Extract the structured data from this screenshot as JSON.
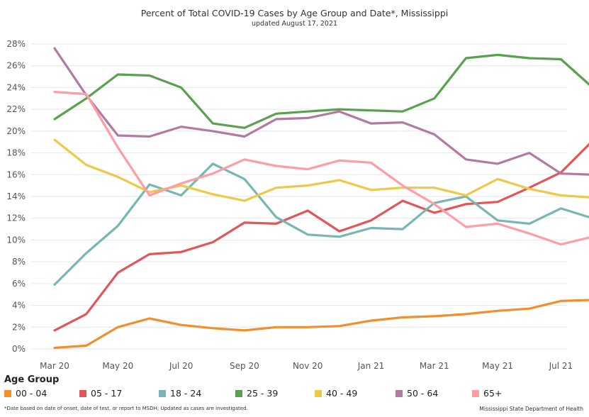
{
  "chart_data": {
    "type": "line",
    "title": "Percent of Total COVID-19 Cases by Age Group and Date*, Mississippi",
    "subtitle": "updated August 17, 2021",
    "x": [
      "Mar 20",
      "Apr 20",
      "May 20",
      "Jun 20",
      "Jul 20",
      "Aug 20",
      "Sep 20",
      "Oct 20",
      "Nov 20",
      "Dec 20",
      "Jan 21",
      "Feb 21",
      "Mar 21",
      "Apr 21",
      "May 21",
      "Jun 21",
      "Jul 21",
      "Aug 21"
    ],
    "x_tick_labels": [
      "Mar 20",
      "May 20",
      "Jul 20",
      "Sep 20",
      "Nov 20",
      "Jan 21",
      "Mar 21",
      "May 21",
      "Jul 21"
    ],
    "y_tick_labels": [
      "0%",
      "2%",
      "4%",
      "6%",
      "8%",
      "10%",
      "12%",
      "14%",
      "16%",
      "18%",
      "20%",
      "22%",
      "24%",
      "26%",
      "28%"
    ],
    "ylim": [
      0,
      28
    ],
    "grid": "horizontal",
    "legend_title": "Age Group",
    "legend_position": "bottom",
    "series": [
      {
        "name": "00 - 04",
        "color": "#f28e2b",
        "values": [
          0.1,
          0.3,
          2.0,
          2.8,
          2.2,
          1.9,
          1.7,
          2.0,
          2.0,
          2.1,
          2.6,
          2.9,
          3.0,
          3.2,
          3.5,
          3.7,
          4.4,
          4.5
        ]
      },
      {
        "name": "05 - 17",
        "color": "#e15759",
        "values": [
          1.7,
          3.2,
          7.0,
          8.7,
          8.9,
          9.8,
          11.6,
          11.5,
          12.7,
          10.8,
          11.8,
          13.6,
          12.5,
          13.3,
          13.5,
          14.8,
          16.2,
          19.1
        ]
      },
      {
        "name": "18 - 24",
        "color": "#76b7b2",
        "values": [
          5.9,
          8.8,
          11.3,
          15.1,
          14.1,
          17.0,
          15.6,
          12.1,
          10.5,
          10.3,
          11.1,
          11.0,
          13.4,
          14.0,
          11.8,
          11.5,
          12.9,
          12.0
        ]
      },
      {
        "name": "25 - 39",
        "color": "#59a14f",
        "values": [
          21.1,
          23.0,
          25.2,
          25.1,
          24.0,
          20.7,
          20.3,
          21.6,
          21.8,
          22.0,
          21.9,
          21.8,
          23.0,
          26.7,
          27.0,
          26.7,
          26.6,
          24.0
        ]
      },
      {
        "name": "40 - 49",
        "color": "#edc948",
        "values": [
          19.2,
          16.9,
          15.8,
          14.4,
          15.0,
          14.2,
          13.6,
          14.8,
          15.0,
          15.5,
          14.6,
          14.8,
          14.8,
          14.1,
          15.6,
          14.7,
          14.1,
          13.9
        ]
      },
      {
        "name": "50 - 64",
        "color": "#b07aa1",
        "values": [
          27.6,
          23.3,
          19.6,
          19.5,
          20.4,
          20.0,
          19.5,
          21.1,
          21.2,
          21.8,
          20.7,
          20.8,
          19.7,
          17.4,
          17.0,
          18.0,
          16.1,
          16.0
        ]
      },
      {
        "name": "65+",
        "color": "#ff9da7",
        "values": [
          23.6,
          23.4,
          18.5,
          14.1,
          15.2,
          16.1,
          17.4,
          16.8,
          16.5,
          17.3,
          17.1,
          15.0,
          13.3,
          11.2,
          11.5,
          10.6,
          9.6,
          10.3
        ]
      }
    ]
  },
  "footnote": "*Date based on date of onset, date of test, or report to MSDH; Updated as cases are investigated.",
  "source": "Mississippi State Department of Health"
}
